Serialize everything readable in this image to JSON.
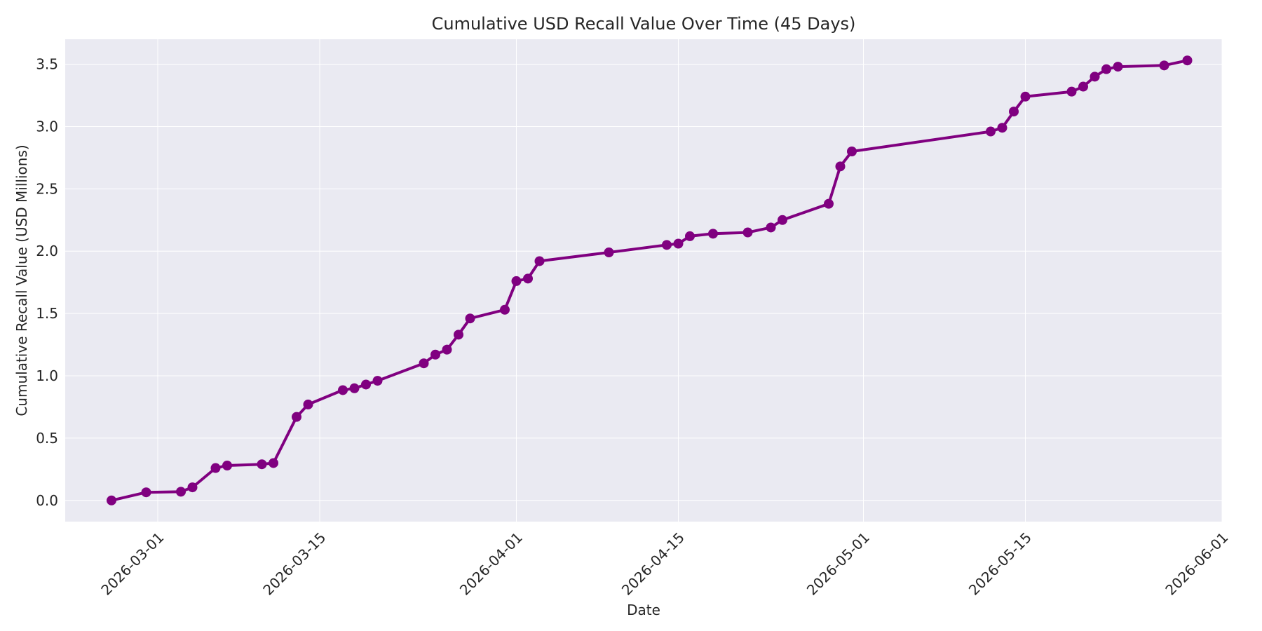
{
  "chart_data": {
    "type": "line",
    "title": "Cumulative USD Recall Value Over Time (45 Days)",
    "xlabel": "Date",
    "ylabel": "Cumulative Recall Value (USD Millions)",
    "xlim": [
      "2026-02-21",
      "2026-06-01"
    ],
    "ylim": [
      -0.17,
      3.7
    ],
    "x_ticks": [
      "2026-03-01",
      "2026-03-15",
      "2026-04-01",
      "2026-04-15",
      "2026-05-01",
      "2026-05-15",
      "2026-06-01"
    ],
    "y_ticks": [
      0.0,
      0.5,
      1.0,
      1.5,
      2.0,
      2.5,
      3.0,
      3.5
    ],
    "y_tick_labels": [
      "0.0",
      "0.5",
      "1.0",
      "1.5",
      "2.0",
      "2.5",
      "3.0",
      "3.5"
    ],
    "grid": true,
    "colors": {
      "series": "#800080",
      "plot_bg": "#eaeaf2",
      "grid": "#ffffff"
    },
    "series": [
      {
        "x": [
          "2026-02-25",
          "2026-02-28",
          "2026-03-03",
          "2026-03-04",
          "2026-03-06",
          "2026-03-07",
          "2026-03-10",
          "2026-03-11",
          "2026-03-13",
          "2026-03-14",
          "2026-03-17",
          "2026-03-18",
          "2026-03-19",
          "2026-03-20",
          "2026-03-24",
          "2026-03-25",
          "2026-03-26",
          "2026-03-27",
          "2026-03-28",
          "2026-03-31",
          "2026-04-01",
          "2026-04-02",
          "2026-04-03",
          "2026-04-09",
          "2026-04-14",
          "2026-04-15",
          "2026-04-16",
          "2026-04-18",
          "2026-04-21",
          "2026-04-23",
          "2026-04-24",
          "2026-04-28",
          "2026-04-29",
          "2026-04-30",
          "2026-05-12",
          "2026-05-13",
          "2026-05-14",
          "2026-05-15",
          "2026-05-19",
          "2026-05-20",
          "2026-05-21",
          "2026-05-22",
          "2026-05-23",
          "2026-05-27",
          "2026-05-29"
        ],
        "values": [
          0.0,
          0.065,
          0.07,
          0.105,
          0.26,
          0.28,
          0.29,
          0.3,
          0.67,
          0.77,
          0.885,
          0.9,
          0.93,
          0.96,
          1.1,
          1.17,
          1.21,
          1.33,
          1.46,
          1.53,
          1.76,
          1.78,
          1.92,
          1.99,
          2.05,
          2.06,
          2.12,
          2.14,
          2.15,
          2.19,
          2.25,
          2.38,
          2.68,
          2.8,
          2.96,
          2.99,
          3.12,
          3.24,
          3.28,
          3.32,
          3.4,
          3.46,
          3.48,
          3.49,
          3.53
        ]
      }
    ]
  }
}
